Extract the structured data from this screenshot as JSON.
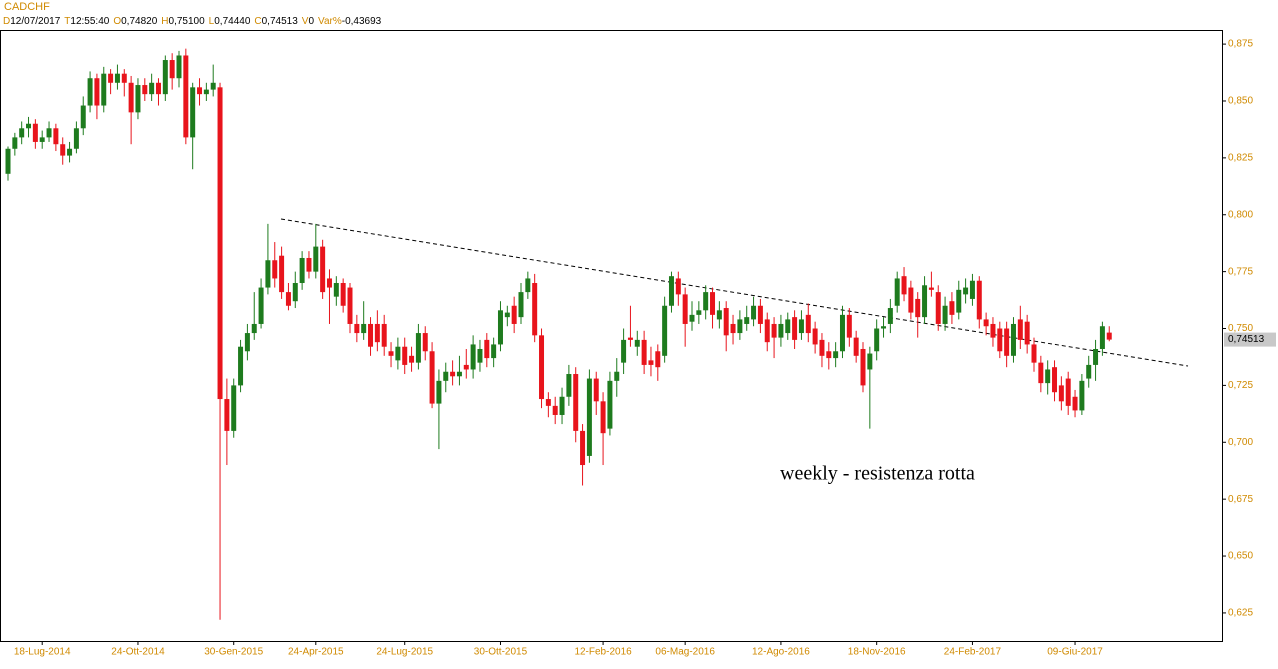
{
  "chart_data": {
    "type": "candlestick",
    "title": "CADCHF",
    "header": [
      {
        "label": "D",
        "value": "12/07/2017"
      },
      {
        "label": "T",
        "value": "12:55:40"
      },
      {
        "label": "O",
        "value": "0,74820"
      },
      {
        "label": "H",
        "value": "0,75100"
      },
      {
        "label": "L",
        "value": "0,74440"
      },
      {
        "label": "C",
        "value": "0,74513"
      },
      {
        "label": "V",
        "value": "0"
      },
      {
        "label": "Var%",
        "value": "-0,43693"
      }
    ],
    "annotation": "weekly - resistenza rotta",
    "up_color": "#1e7b1e",
    "down_color": "#e8141c",
    "ylim": [
      0.6131,
      0.879
    ],
    "yticks": [
      {
        "value": 0.625,
        "label": "0,625"
      },
      {
        "value": 0.65,
        "label": "0,650"
      },
      {
        "value": 0.675,
        "label": "0,675"
      },
      {
        "value": 0.7,
        "label": "0,700"
      },
      {
        "value": 0.725,
        "label": "0,725"
      },
      {
        "value": 0.75,
        "label": "0,750"
      },
      {
        "value": 0.775,
        "label": "0,775"
      },
      {
        "value": 0.8,
        "label": "0,800"
      },
      {
        "value": 0.825,
        "label": "0,825"
      },
      {
        "value": 0.85,
        "label": "0,850"
      },
      {
        "value": 0.875,
        "label": "0,875"
      }
    ],
    "categories": [
      null,
      null,
      null,
      null,
      null,
      "18-Lug-2014",
      null,
      null,
      null,
      null,
      null,
      null,
      null,
      null,
      null,
      null,
      null,
      null,
      null,
      "24-Ott-2014",
      null,
      null,
      null,
      null,
      null,
      null,
      null,
      null,
      null,
      null,
      null,
      null,
      null,
      "30-Gen-2015",
      null,
      null,
      null,
      null,
      null,
      null,
      null,
      null,
      null,
      null,
      null,
      "24-Apr-2015",
      null,
      null,
      null,
      null,
      null,
      null,
      null,
      null,
      null,
      null,
      null,
      null,
      "24-Lug-2015",
      null,
      null,
      null,
      null,
      null,
      null,
      null,
      null,
      null,
      null,
      null,
      null,
      null,
      "30-Ott-2015",
      null,
      null,
      null,
      null,
      null,
      null,
      null,
      null,
      null,
      null,
      null,
      null,
      null,
      null,
      "12-Feb-2016",
      null,
      null,
      null,
      null,
      null,
      null,
      null,
      null,
      null,
      null,
      null,
      "06-Mag-2016",
      null,
      null,
      null,
      null,
      null,
      null,
      null,
      null,
      null,
      null,
      null,
      null,
      null,
      "12-Ago-2016",
      null,
      null,
      null,
      null,
      null,
      null,
      null,
      null,
      null,
      null,
      null,
      null,
      null,
      "18-Nov-2016",
      null,
      null,
      null,
      null,
      null,
      null,
      null,
      null,
      null,
      null,
      null,
      null,
      null,
      "24-Feb-2017",
      null,
      null,
      null,
      null,
      null,
      null,
      null,
      null,
      null,
      null,
      null,
      null,
      null,
      null,
      "09-Giu-2017",
      null,
      null,
      null,
      null,
      null
    ],
    "ohlc": [
      [
        0.818,
        0.83,
        0.815,
        0.829
      ],
      [
        0.829,
        0.836,
        0.826,
        0.834
      ],
      [
        0.834,
        0.841,
        0.831,
        0.838
      ],
      [
        0.838,
        0.843,
        0.834,
        0.84
      ],
      [
        0.84,
        0.842,
        0.829,
        0.832
      ],
      [
        0.832,
        0.837,
        0.829,
        0.834
      ],
      [
        0.834,
        0.841,
        0.832,
        0.838
      ],
      [
        0.838,
        0.84,
        0.828,
        0.831
      ],
      [
        0.831,
        0.834,
        0.822,
        0.826
      ],
      [
        0.826,
        0.832,
        0.823,
        0.829
      ],
      [
        0.829,
        0.841,
        0.827,
        0.838
      ],
      [
        0.838,
        0.852,
        0.835,
        0.848
      ],
      [
        0.848,
        0.863,
        0.845,
        0.86
      ],
      [
        0.86,
        0.862,
        0.842,
        0.848
      ],
      [
        0.848,
        0.865,
        0.845,
        0.862
      ],
      [
        0.862,
        0.864,
        0.853,
        0.858
      ],
      [
        0.858,
        0.866,
        0.855,
        0.862
      ],
      [
        0.862,
        0.864,
        0.852,
        0.858
      ],
      [
        0.858,
        0.861,
        0.831,
        0.845
      ],
      [
        0.845,
        0.86,
        0.842,
        0.857
      ],
      [
        0.857,
        0.86,
        0.85,
        0.853
      ],
      [
        0.853,
        0.862,
        0.85,
        0.858
      ],
      [
        0.858,
        0.86,
        0.848,
        0.853
      ],
      [
        0.853,
        0.87,
        0.85,
        0.868
      ],
      [
        0.868,
        0.871,
        0.855,
        0.86
      ],
      [
        0.86,
        0.872,
        0.856,
        0.87
      ],
      [
        0.87,
        0.873,
        0.831,
        0.834
      ],
      [
        0.834,
        0.858,
        0.82,
        0.856
      ],
      [
        0.856,
        0.86,
        0.848,
        0.853
      ],
      [
        0.853,
        0.858,
        0.85,
        0.855
      ],
      [
        0.855,
        0.866,
        0.852,
        0.858
      ],
      [
        0.856,
        0.858,
        0.622,
        0.719
      ],
      [
        0.719,
        0.728,
        0.69,
        0.705
      ],
      [
        0.705,
        0.728,
        0.702,
        0.725
      ],
      [
        0.725,
        0.745,
        0.722,
        0.742
      ],
      [
        0.74,
        0.752,
        0.736,
        0.748
      ],
      [
        0.748,
        0.766,
        0.745,
        0.752
      ],
      [
        0.752,
        0.772,
        0.75,
        0.768
      ],
      [
        0.768,
        0.796,
        0.765,
        0.78
      ],
      [
        0.78,
        0.788,
        0.768,
        0.772
      ],
      [
        0.782,
        0.786,
        0.763,
        0.766
      ],
      [
        0.766,
        0.77,
        0.758,
        0.76
      ],
      [
        0.762,
        0.775,
        0.759,
        0.77
      ],
      [
        0.77,
        0.784,
        0.767,
        0.781
      ],
      [
        0.781,
        0.784,
        0.772,
        0.775
      ],
      [
        0.775,
        0.796,
        0.772,
        0.786
      ],
      [
        0.786,
        0.789,
        0.763,
        0.766
      ],
      [
        0.772,
        0.776,
        0.752,
        0.768
      ],
      [
        0.764,
        0.773,
        0.76,
        0.77
      ],
      [
        0.77,
        0.772,
        0.757,
        0.76
      ],
      [
        0.768,
        0.77,
        0.748,
        0.752
      ],
      [
        0.752,
        0.756,
        0.744,
        0.748
      ],
      [
        0.748,
        0.762,
        0.745,
        0.752
      ],
      [
        0.752,
        0.755,
        0.738,
        0.742
      ],
      [
        0.752,
        0.758,
        0.74,
        0.744
      ],
      [
        0.752,
        0.756,
        0.738,
        0.742
      ],
      [
        0.74,
        0.744,
        0.733,
        0.738
      ],
      [
        0.736,
        0.746,
        0.732,
        0.742
      ],
      [
        0.742,
        0.746,
        0.73,
        0.734
      ],
      [
        0.738,
        0.742,
        0.731,
        0.735
      ],
      [
        0.735,
        0.752,
        0.732,
        0.748
      ],
      [
        0.748,
        0.751,
        0.736,
        0.74
      ],
      [
        0.74,
        0.744,
        0.715,
        0.717
      ],
      [
        0.717,
        0.732,
        0.697,
        0.727
      ],
      [
        0.727,
        0.735,
        0.722,
        0.731
      ],
      [
        0.731,
        0.736,
        0.725,
        0.729
      ],
      [
        0.729,
        0.738,
        0.725,
        0.731
      ],
      [
        0.734,
        0.741,
        0.728,
        0.732
      ],
      [
        0.732,
        0.747,
        0.728,
        0.743
      ],
      [
        0.735,
        0.745,
        0.731,
        0.741
      ],
      [
        0.745,
        0.748,
        0.733,
        0.737
      ],
      [
        0.737,
        0.746,
        0.733,
        0.743
      ],
      [
        0.743,
        0.762,
        0.74,
        0.758
      ],
      [
        0.755,
        0.76,
        0.751,
        0.757
      ],
      [
        0.76,
        0.764,
        0.748,
        0.752
      ],
      [
        0.755,
        0.77,
        0.752,
        0.766
      ],
      [
        0.766,
        0.775,
        0.763,
        0.772
      ],
      [
        0.77,
        0.774,
        0.744,
        0.747
      ],
      [
        0.747,
        0.75,
        0.715,
        0.719
      ],
      [
        0.719,
        0.722,
        0.711,
        0.716
      ],
      [
        0.716,
        0.72,
        0.708,
        0.712
      ],
      [
        0.712,
        0.724,
        0.708,
        0.72
      ],
      [
        0.72,
        0.734,
        0.716,
        0.73
      ],
      [
        0.73,
        0.733,
        0.7,
        0.705
      ],
      [
        0.705,
        0.708,
        0.681,
        0.69
      ],
      [
        0.694,
        0.732,
        0.691,
        0.728
      ],
      [
        0.728,
        0.731,
        0.712,
        0.718
      ],
      [
        0.718,
        0.722,
        0.69,
        0.704
      ],
      [
        0.706,
        0.731,
        0.703,
        0.727
      ],
      [
        0.727,
        0.737,
        0.72,
        0.731
      ],
      [
        0.735,
        0.75,
        0.73,
        0.745
      ],
      [
        0.746,
        0.76,
        0.742,
        0.745
      ],
      [
        0.742,
        0.749,
        0.738,
        0.745
      ],
      [
        0.745,
        0.749,
        0.73,
        0.734
      ],
      [
        0.736,
        0.742,
        0.729,
        0.734
      ],
      [
        0.74,
        0.743,
        0.727,
        0.733
      ],
      [
        0.738,
        0.764,
        0.735,
        0.76
      ],
      [
        0.76,
        0.775,
        0.757,
        0.773
      ],
      [
        0.772,
        0.775,
        0.76,
        0.765
      ],
      [
        0.765,
        0.768,
        0.742,
        0.752
      ],
      [
        0.753,
        0.762,
        0.749,
        0.756
      ],
      [
        0.756,
        0.762,
        0.752,
        0.758
      ],
      [
        0.758,
        0.769,
        0.754,
        0.766
      ],
      [
        0.766,
        0.768,
        0.75,
        0.756
      ],
      [
        0.754,
        0.762,
        0.75,
        0.758
      ],
      [
        0.759,
        0.762,
        0.74,
        0.747
      ],
      [
        0.752,
        0.756,
        0.743,
        0.748
      ],
      [
        0.748,
        0.758,
        0.745,
        0.754
      ],
      [
        0.752,
        0.76,
        0.749,
        0.755
      ],
      [
        0.754,
        0.764,
        0.751,
        0.76
      ],
      [
        0.76,
        0.763,
        0.748,
        0.752
      ],
      [
        0.754,
        0.757,
        0.74,
        0.744
      ],
      [
        0.752,
        0.755,
        0.737,
        0.746
      ],
      [
        0.746,
        0.756,
        0.742,
        0.752
      ],
      [
        0.748,
        0.757,
        0.745,
        0.754
      ],
      [
        0.755,
        0.758,
        0.741,
        0.745
      ],
      [
        0.748,
        0.758,
        0.745,
        0.754
      ],
      [
        0.756,
        0.761,
        0.744,
        0.748
      ],
      [
        0.75,
        0.753,
        0.739,
        0.743
      ],
      [
        0.745,
        0.748,
        0.733,
        0.738
      ],
      [
        0.74,
        0.744,
        0.732,
        0.737
      ],
      [
        0.737,
        0.744,
        0.733,
        0.74
      ],
      [
        0.74,
        0.76,
        0.737,
        0.756
      ],
      [
        0.756,
        0.759,
        0.742,
        0.746
      ],
      [
        0.746,
        0.749,
        0.735,
        0.738
      ],
      [
        0.741,
        0.744,
        0.722,
        0.725
      ],
      [
        0.732,
        0.742,
        0.706,
        0.739
      ],
      [
        0.74,
        0.754,
        0.736,
        0.75
      ],
      [
        0.75,
        0.755,
        0.746,
        0.751
      ],
      [
        0.752,
        0.763,
        0.748,
        0.759
      ],
      [
        0.76,
        0.775,
        0.757,
        0.772
      ],
      [
        0.773,
        0.777,
        0.762,
        0.765
      ],
      [
        0.768,
        0.771,
        0.754,
        0.757
      ],
      [
        0.763,
        0.766,
        0.746,
        0.755
      ],
      [
        0.755,
        0.773,
        0.752,
        0.769
      ],
      [
        0.768,
        0.775,
        0.764,
        0.767
      ],
      [
        0.766,
        0.769,
        0.749,
        0.752
      ],
      [
        0.752,
        0.764,
        0.749,
        0.76
      ],
      [
        0.762,
        0.766,
        0.752,
        0.756
      ],
      [
        0.757,
        0.771,
        0.754,
        0.767
      ],
      [
        0.765,
        0.772,
        0.761,
        0.768
      ],
      [
        0.763,
        0.774,
        0.76,
        0.771
      ],
      [
        0.771,
        0.773,
        0.75,
        0.754
      ],
      [
        0.754,
        0.757,
        0.747,
        0.751
      ],
      [
        0.752,
        0.755,
        0.742,
        0.746
      ],
      [
        0.75,
        0.753,
        0.737,
        0.74
      ],
      [
        0.75,
        0.753,
        0.733,
        0.738
      ],
      [
        0.738,
        0.755,
        0.735,
        0.752
      ],
      [
        0.754,
        0.76,
        0.741,
        0.745
      ],
      [
        0.753,
        0.756,
        0.739,
        0.743
      ],
      [
        0.743,
        0.746,
        0.731,
        0.735
      ],
      [
        0.735,
        0.738,
        0.722,
        0.726
      ],
      [
        0.726,
        0.736,
        0.721,
        0.732
      ],
      [
        0.733,
        0.736,
        0.718,
        0.722
      ],
      [
        0.725,
        0.729,
        0.714,
        0.718
      ],
      [
        0.728,
        0.731,
        0.712,
        0.716
      ],
      [
        0.72,
        0.723,
        0.711,
        0.714
      ],
      [
        0.714,
        0.73,
        0.712,
        0.727
      ],
      [
        0.728,
        0.738,
        0.724,
        0.734
      ],
      [
        0.734,
        0.745,
        0.727,
        0.741
      ],
      [
        0.741,
        0.753,
        0.738,
        0.751
      ],
      [
        0.7482,
        0.751,
        0.7444,
        0.74513
      ]
    ]
  }
}
